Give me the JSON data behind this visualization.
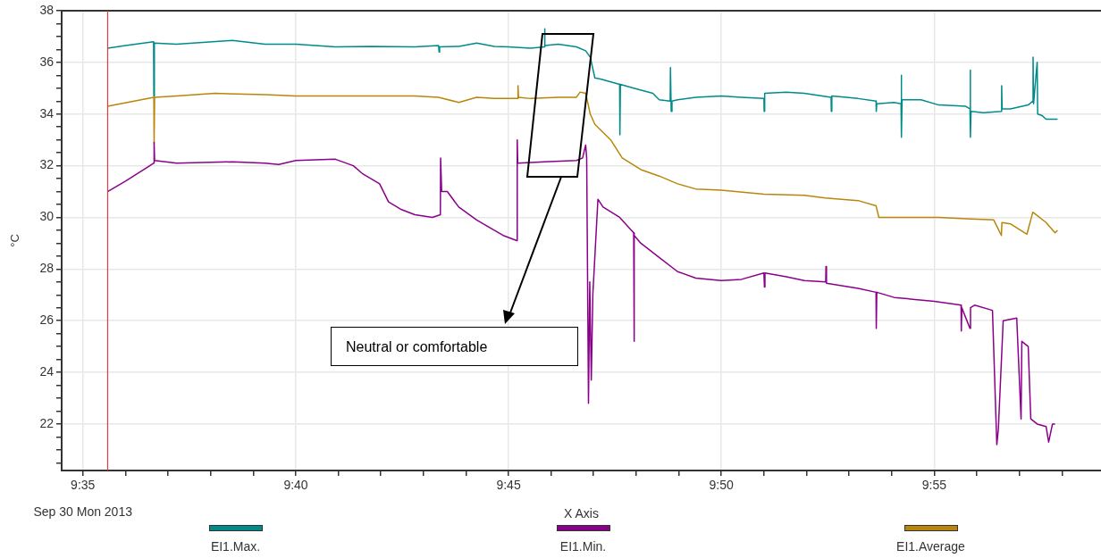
{
  "chart_data": {
    "type": "line",
    "xlabel": "X Axis",
    "ylabel": "°C",
    "xlim": [
      9.575,
      9.982
    ],
    "ylim": [
      20.2,
      38
    ],
    "xticks": [
      {
        "value": 9.5833,
        "label": "9:35"
      },
      {
        "value": 9.6,
        "label": null
      },
      {
        "value": 9.6167,
        "label": null
      },
      {
        "value": 9.6333,
        "label": null
      },
      {
        "value": 9.65,
        "label": null
      },
      {
        "value": 9.6667,
        "label": "9:40"
      },
      {
        "value": 9.6833,
        "label": null
      },
      {
        "value": 9.7,
        "label": null
      },
      {
        "value": 9.7167,
        "label": null
      },
      {
        "value": 9.7333,
        "label": null
      },
      {
        "value": 9.75,
        "label": "9:45"
      },
      {
        "value": 9.7667,
        "label": null
      },
      {
        "value": 9.7833,
        "label": null
      },
      {
        "value": 9.8,
        "label": null
      },
      {
        "value": 9.8167,
        "label": null
      },
      {
        "value": 9.8333,
        "label": "9:50"
      },
      {
        "value": 9.85,
        "label": null
      },
      {
        "value": 9.8667,
        "label": null
      },
      {
        "value": 9.8833,
        "label": null
      },
      {
        "value": 9.9,
        "label": null
      },
      {
        "value": 9.9167,
        "label": "9:55"
      },
      {
        "value": 9.9333,
        "label": null
      },
      {
        "value": 9.95,
        "label": null
      },
      {
        "value": 9.9667,
        "label": null
      }
    ],
    "yticks": [
      {
        "value": 20.5,
        "label": null
      },
      {
        "value": 21,
        "label": null
      },
      {
        "value": 21.5,
        "label": null
      },
      22,
      {
        "value": 22.5,
        "label": null
      },
      {
        "value": 23,
        "label": null
      },
      {
        "value": 23.5,
        "label": null
      },
      24,
      {
        "value": 24.5,
        "label": null
      },
      {
        "value": 25,
        "label": null
      },
      {
        "value": 25.5,
        "label": null
      },
      26,
      {
        "value": 26.5,
        "label": null
      },
      {
        "value": 27,
        "label": null
      },
      {
        "value": 27.5,
        "label": null
      },
      28,
      {
        "value": 28.5,
        "label": null
      },
      {
        "value": 29,
        "label": null
      },
      {
        "value": 29.5,
        "label": null
      },
      30,
      {
        "value": 30.5,
        "label": null
      },
      {
        "value": 31,
        "label": null
      },
      {
        "value": 31.5,
        "label": null
      },
      32,
      {
        "value": 32.5,
        "label": null
      },
      {
        "value": 33,
        "label": null
      },
      {
        "value": 33.5,
        "label": null
      },
      34,
      {
        "value": 34.5,
        "label": null
      },
      {
        "value": 35,
        "label": null
      },
      {
        "value": 35.5,
        "label": null
      },
      36,
      {
        "value": 36.5,
        "label": null
      },
      {
        "value": 37,
        "label": null
      },
      {
        "value": 37.5,
        "label": null
      },
      38
    ],
    "grid": true,
    "legend": "bottom",
    "marker": "none",
    "line_style": "solid",
    "ref_lines": [
      {
        "axis": "x",
        "value": 9.593,
        "color": "#e03c3c"
      }
    ],
    "annotations": [
      "Sep 30 Mon 2013",
      "Neutral or comfortable"
    ],
    "series": [
      {
        "name": "EI1.Max.",
        "color": "#008b8b",
        "x": [
          9.593,
          9.6,
          9.611,
          9.6111,
          9.6113,
          9.62,
          9.6418,
          9.6546,
          9.6667,
          9.6822,
          9.696,
          9.7133,
          9.7226,
          9.7228,
          9.723,
          9.7305,
          9.7375,
          9.7444,
          9.75,
          9.7586,
          9.764,
          9.7641,
          9.7643,
          9.7695,
          9.7766,
          9.7802,
          9.782,
          9.7838,
          9.7863,
          9.7935,
          9.7936,
          9.7938,
          9.799,
          9.8065,
          9.809,
          9.8133,
          9.8134,
          9.8137,
          9.814,
          9.8162,
          9.8233,
          9.8333,
          9.8412,
          9.85,
          9.8501,
          9.8503,
          9.8588,
          9.8658,
          9.8763,
          9.8764,
          9.8766,
          9.8869,
          9.8939,
          9.894,
          9.8942,
          9.901,
          9.9037,
          9.9038,
          9.9039,
          9.9041,
          9.9115,
          9.9185,
          9.929,
          9.9307,
          9.9308,
          9.9309,
          9.9311,
          9.936,
          9.943,
          9.9431,
          9.9433,
          9.9465,
          9.9535,
          9.9553,
          9.9554,
          9.9556,
          9.957,
          9.9572,
          9.9588,
          9.9605,
          9.965
        ],
        "values": [
          36.55,
          36.65,
          36.8,
          34.7,
          36.75,
          36.7,
          36.85,
          36.7,
          36.7,
          36.6,
          36.62,
          36.6,
          36.65,
          36.4,
          36.6,
          36.62,
          36.75,
          36.62,
          36.6,
          36.55,
          36.6,
          37.3,
          36.65,
          36.7,
          36.6,
          36.45,
          36.2,
          35.4,
          35.35,
          35.15,
          33.2,
          35.15,
          35.0,
          34.8,
          34.55,
          34.5,
          35.8,
          34.1,
          34.5,
          34.55,
          34.65,
          34.7,
          34.65,
          34.6,
          34.1,
          34.8,
          34.85,
          34.8,
          34.65,
          34.1,
          34.7,
          34.6,
          34.5,
          34.1,
          34.4,
          34.45,
          34.4,
          35.5,
          33.1,
          34.55,
          34.55,
          34.35,
          34.3,
          34.2,
          35.7,
          33.1,
          34.1,
          34.05,
          34.1,
          35.1,
          34.2,
          34.2,
          34.35,
          34.5,
          36.2,
          34.4,
          36.0,
          34.0,
          33.95,
          33.8,
          33.8
        ]
      },
      {
        "name": "EI1.Min.",
        "color": "#8b008b",
        "x": [
          9.593,
          9.6,
          9.608,
          9.6111,
          9.6112,
          9.6114,
          9.62,
          9.6418,
          9.6546,
          9.66,
          9.6667,
          9.6822,
          9.6892,
          9.6927,
          9.6995,
          9.703,
          9.7081,
          9.7133,
          9.7202,
          9.7233,
          9.7234,
          9.7238,
          9.726,
          9.7305,
          9.7375,
          9.7444,
          9.7479,
          9.7532,
          9.7534,
          9.7536,
          9.764,
          9.7766,
          9.779,
          9.7802,
          9.7806,
          9.7813,
          9.7818,
          9.7824,
          9.783,
          9.785,
          9.787,
          9.7935,
          9.799,
          9.7991,
          9.7993,
          9.8018,
          9.809,
          9.8162,
          9.8233,
          9.8333,
          9.8412,
          9.85,
          9.8502,
          9.8504,
          9.8588,
          9.8658,
          9.8742,
          9.8743,
          9.8745,
          9.8869,
          9.8939,
          9.894,
          9.8942,
          9.901,
          9.9167,
          9.9272,
          9.9273,
          9.9275,
          9.9307,
          9.9309,
          9.9325,
          9.9395,
          9.9412,
          9.9418,
          9.9437,
          9.949,
          9.9507,
          9.951,
          9.9535,
          9.9545,
          9.957,
          9.9605,
          9.9615,
          9.963,
          9.964
        ],
        "values": [
          31.0,
          31.4,
          31.9,
          32.1,
          32.9,
          32.2,
          32.1,
          32.15,
          32.1,
          32.05,
          32.2,
          32.25,
          32.0,
          31.7,
          31.3,
          30.6,
          30.3,
          30.1,
          30.0,
          30.1,
          32.3,
          31.0,
          31.0,
          30.4,
          29.9,
          29.5,
          29.3,
          29.1,
          33.0,
          32.1,
          32.15,
          32.2,
          32.3,
          32.8,
          32.3,
          22.8,
          27.5,
          23.7,
          27.0,
          30.7,
          30.4,
          30.0,
          29.4,
          25.2,
          29.3,
          29.0,
          28.45,
          27.9,
          27.65,
          27.55,
          27.6,
          27.85,
          27.3,
          27.85,
          27.7,
          27.55,
          27.5,
          28.1,
          27.45,
          27.25,
          27.1,
          25.7,
          27.1,
          26.9,
          26.75,
          26.6,
          25.6,
          26.5,
          25.7,
          26.5,
          26.6,
          26.4,
          21.2,
          21.8,
          26.0,
          26.1,
          22.2,
          25.2,
          25.0,
          22.2,
          22.0,
          21.9,
          21.3,
          22.0,
          22.0
        ]
      },
      {
        "name": "EI1.Average",
        "color": "#b8860b",
        "x": [
          9.593,
          9.6111,
          9.6112,
          9.6114,
          9.62,
          9.635,
          9.6546,
          9.6667,
          9.6892,
          9.7133,
          9.7226,
          9.7305,
          9.7375,
          9.7444,
          9.7536,
          9.7537,
          9.7539,
          9.7586,
          9.7695,
          9.7766,
          9.778,
          9.7802,
          9.782,
          9.7838,
          9.79,
          9.7945,
          9.8018,
          9.809,
          9.8162,
          9.8233,
          9.8333,
          9.85,
          9.8658,
          9.874,
          9.8869,
          9.8939,
          9.895,
          9.9185,
          9.929,
          9.94,
          9.943,
          9.9432,
          9.9465,
          9.953,
          9.9553,
          9.9605,
          9.964,
          9.965
        ],
        "values": [
          34.3,
          34.65,
          32.85,
          34.65,
          34.7,
          34.8,
          34.75,
          34.7,
          34.7,
          34.7,
          34.65,
          34.45,
          34.65,
          34.6,
          34.6,
          35.1,
          34.65,
          34.6,
          34.65,
          34.65,
          34.85,
          34.8,
          34.0,
          33.6,
          33.0,
          32.3,
          31.85,
          31.6,
          31.3,
          31.1,
          31.05,
          30.9,
          30.85,
          30.75,
          30.65,
          30.45,
          30.0,
          30.0,
          29.95,
          29.9,
          29.3,
          29.8,
          29.75,
          29.35,
          30.2,
          29.8,
          29.4,
          29.5
        ]
      }
    ]
  }
}
